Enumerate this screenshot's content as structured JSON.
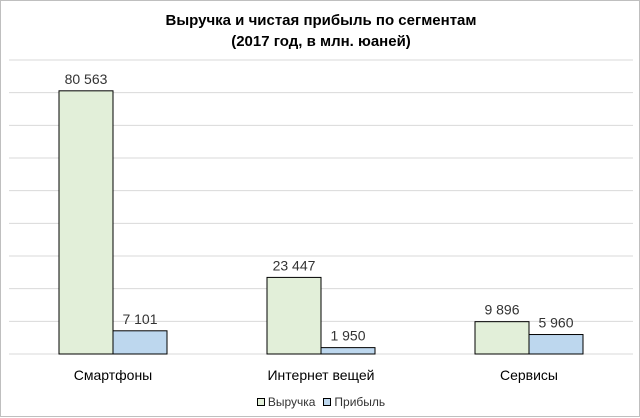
{
  "chart_data": {
    "type": "bar",
    "title_line1": "Выручка и чистая прибыль по сегментам",
    "title_line2": "(2017 год, в млн. юаней)",
    "categories": [
      "Смартфоны",
      "Интернет вещей",
      "Сервисы"
    ],
    "series": [
      {
        "name": "Выручка",
        "values": [
          80563,
          23447,
          9896
        ],
        "labels": [
          "80 563",
          "23 447",
          "9 896"
        ],
        "color": "#e2efd9"
      },
      {
        "name": "Прибыль",
        "values": [
          7101,
          1950,
          5960
        ],
        "labels": [
          "7 101",
          "1 950",
          "5 960"
        ],
        "color": "#bdd7ee"
      }
    ],
    "ylim": [
      0,
      90000
    ],
    "grid": true,
    "legend": "bottom"
  }
}
